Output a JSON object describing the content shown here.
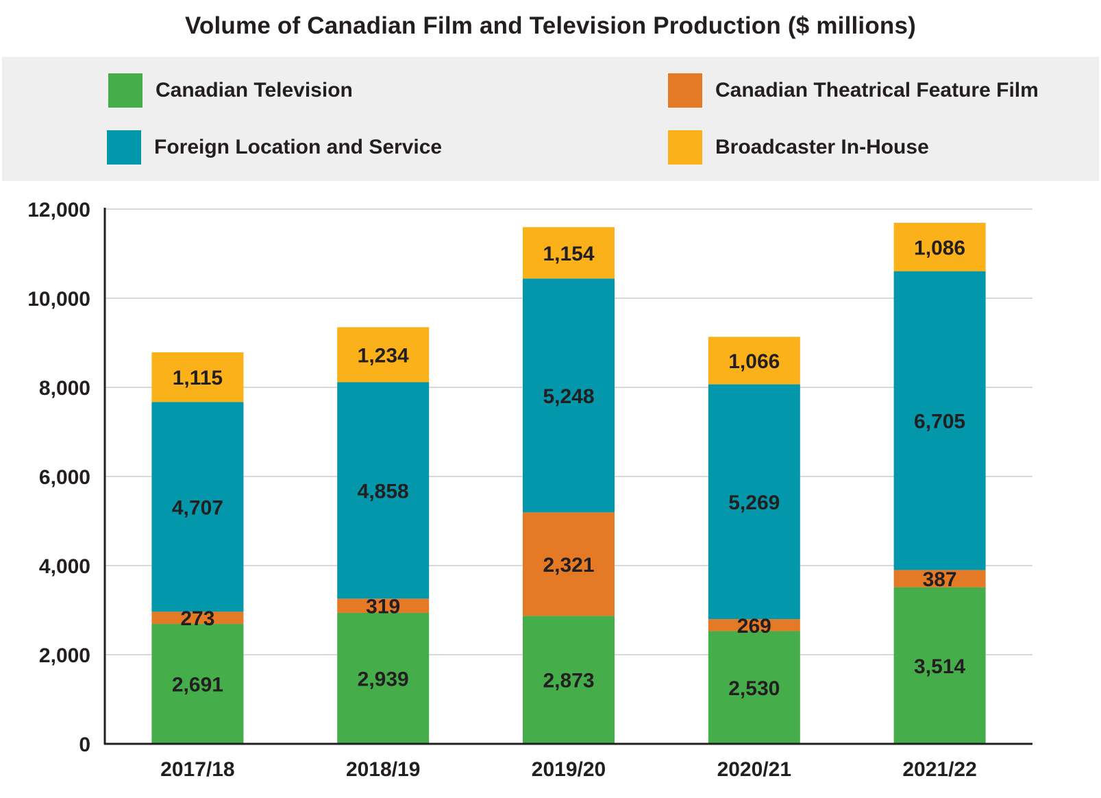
{
  "chart_data": {
    "type": "bar",
    "stacked": true,
    "title": "Volume of Canadian Film and Television Production ($ millions)",
    "xlabel": "",
    "ylabel": "",
    "ylim": [
      0,
      12000
    ],
    "y_ticks": [
      0,
      2000,
      4000,
      6000,
      8000,
      10000,
      12000
    ],
    "y_tick_labels": [
      "0",
      "2,000",
      "4,000",
      "6,000",
      "8,000",
      "10,000",
      "12,000"
    ],
    "grid": true,
    "legend_position": "top",
    "categories": [
      "2017/18",
      "2018/19",
      "2019/20",
      "2020/21",
      "2021/22"
    ],
    "series": [
      {
        "name": "Canadian Television",
        "color": "#45ae4a",
        "values": [
          2691,
          2939,
          2873,
          2530,
          3514
        ],
        "labels": [
          "2,691",
          "2,939",
          "2,873",
          "2,530",
          "3,514"
        ]
      },
      {
        "name": "Canadian Theatrical Feature Film",
        "color": "#e57a26",
        "values": [
          273,
          319,
          2321,
          269,
          387
        ],
        "labels": [
          "273",
          "319",
          "2,321",
          "269",
          "387"
        ]
      },
      {
        "name": "Foreign Location and Service",
        "color": "#0397ab",
        "values": [
          4707,
          4858,
          5248,
          5269,
          6705
        ],
        "labels": [
          "4,707",
          "4,858",
          "5,248",
          "5,269",
          "6,705"
        ]
      },
      {
        "name": "Broadcaster In-House",
        "color": "#fbb119",
        "values": [
          1115,
          1234,
          1154,
          1066,
          1086
        ],
        "labels": [
          "1,115",
          "1,234",
          "1,154",
          "1,066",
          "1,086"
        ]
      }
    ]
  },
  "legend": {
    "items": [
      {
        "label": "Canadian Television",
        "color": "#45ae4a"
      },
      {
        "label": "Canadian Theatrical Feature Film",
        "color": "#e57a26"
      },
      {
        "label": "Foreign Location and Service",
        "color": "#0397ab"
      },
      {
        "label": "Broadcaster In-House",
        "color": "#fbb119"
      }
    ]
  },
  "colors": {
    "axis": "#231f20",
    "grid": "#d9d9d9",
    "legend_background": "#efefef"
  }
}
